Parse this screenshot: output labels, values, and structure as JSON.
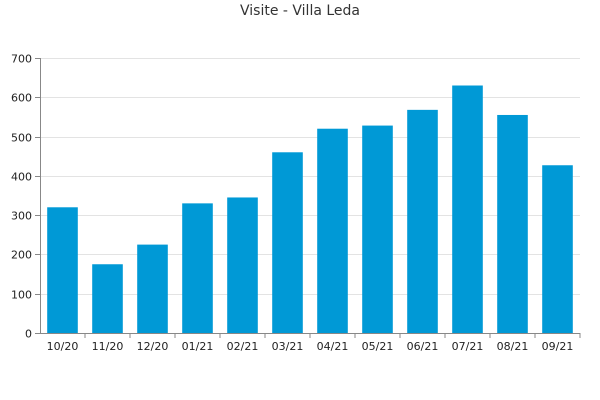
{
  "colors": {
    "bar": "#0099D6",
    "grid": "#E3E3E3",
    "axis": "#888888"
  },
  "chart_data": {
    "type": "bar",
    "title": "Visite - Villa Leda",
    "categories": [
      "10/20",
      "11/20",
      "12/20",
      "01/21",
      "02/21",
      "03/21",
      "04/21",
      "05/21",
      "06/21",
      "07/21",
      "08/21",
      "09/21"
    ],
    "values": [
      320,
      175,
      225,
      330,
      345,
      460,
      520,
      528,
      568,
      630,
      555,
      427
    ],
    "ylim": [
      0,
      700
    ],
    "yticks": [
      0,
      100,
      200,
      300,
      400,
      500,
      600,
      700
    ],
    "grid": true,
    "legend": "none"
  }
}
